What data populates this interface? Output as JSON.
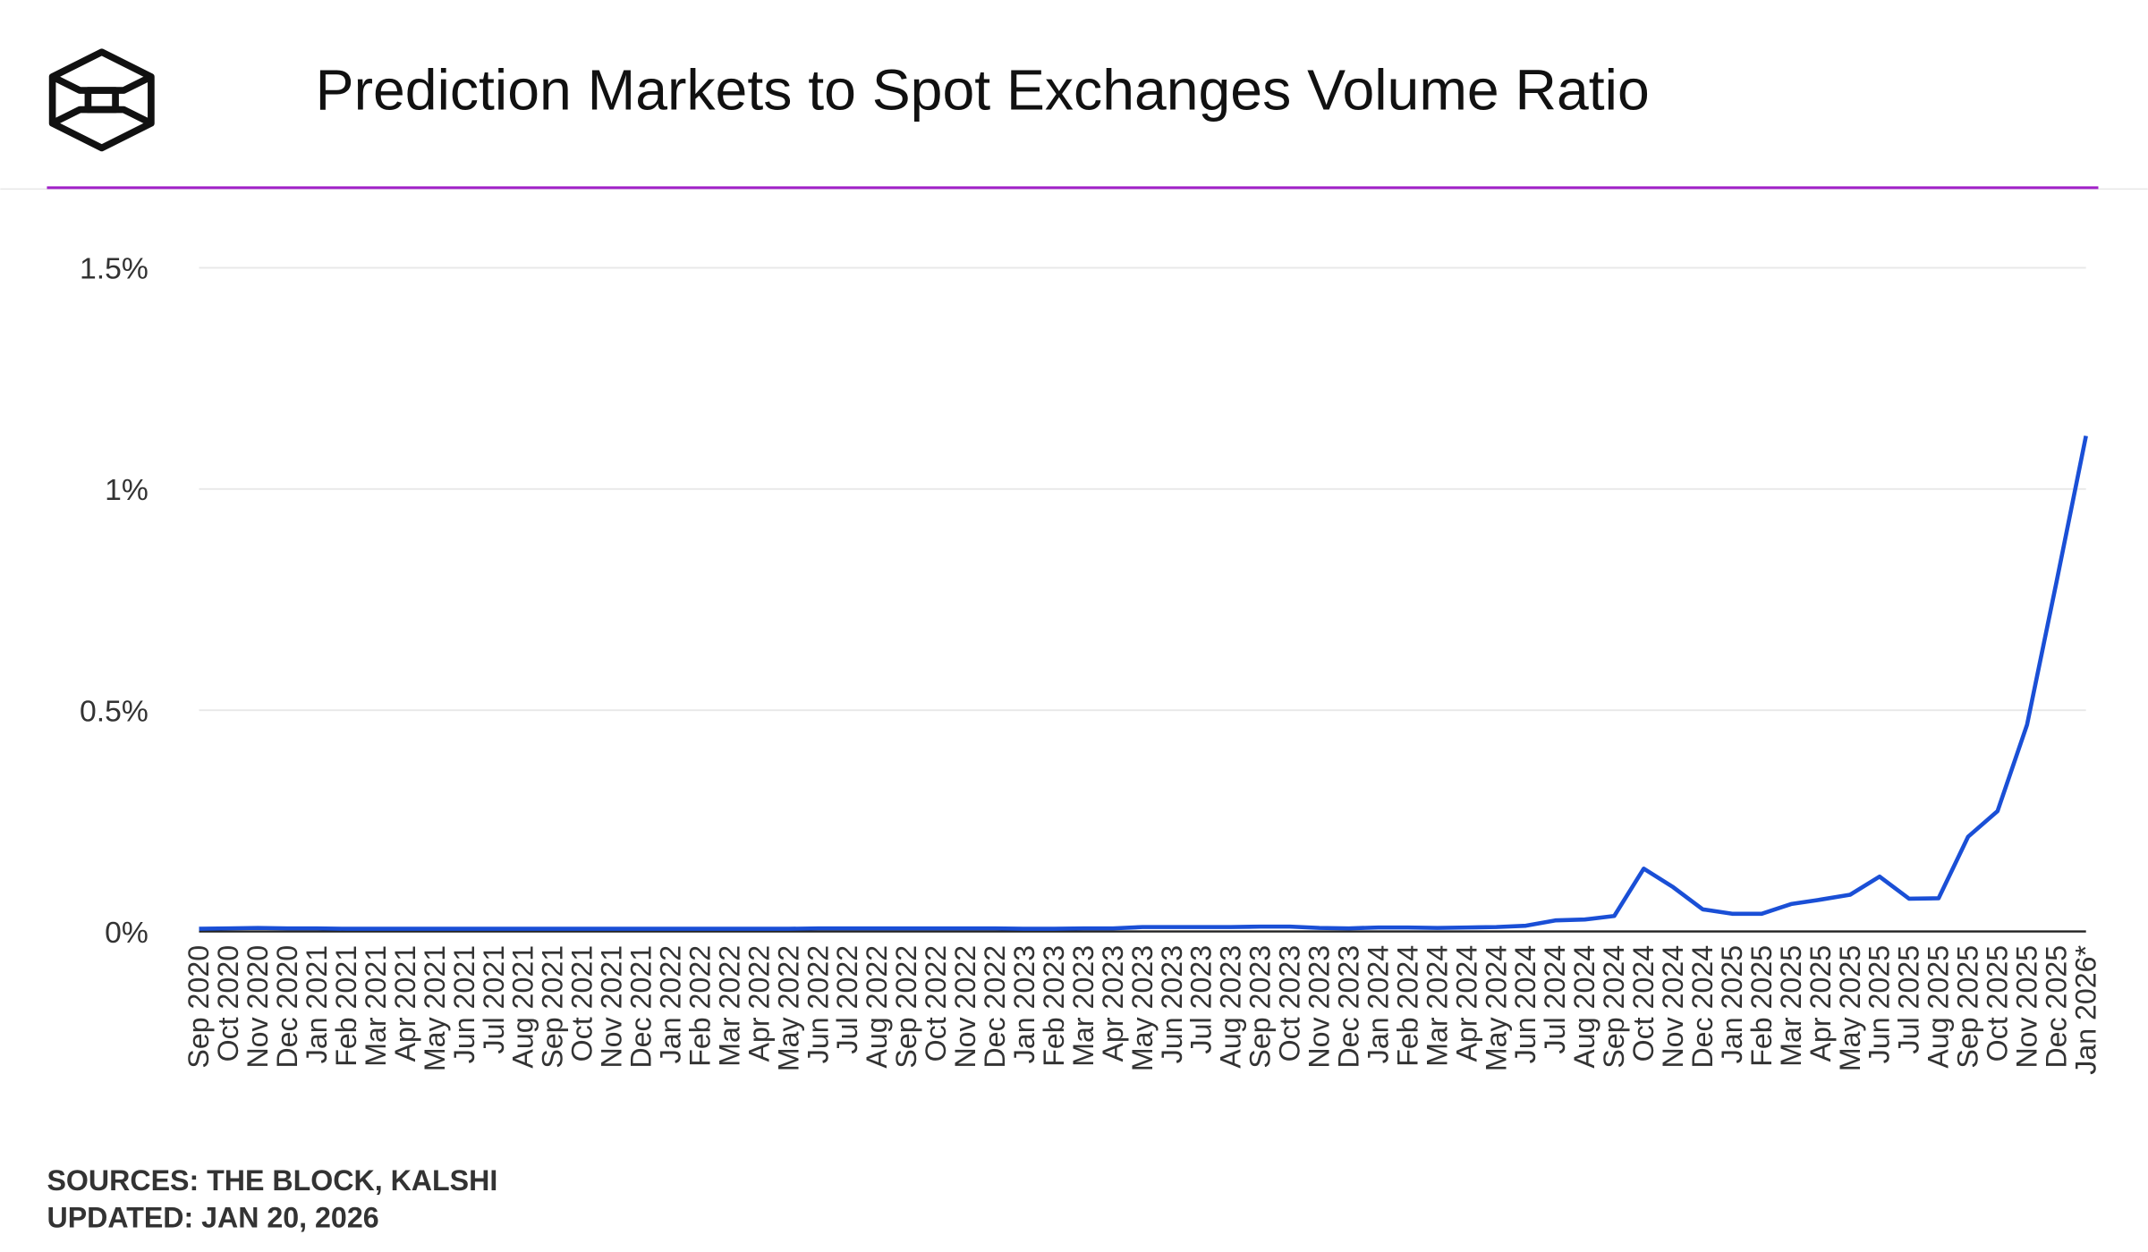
{
  "chart_data": {
    "type": "line",
    "title": "Prediction Markets to Spot Exchanges Volume Ratio",
    "sources": "SOURCES: THE BLOCK, KALSHI",
    "updated": "UPDATED: JAN 20, 2026",
    "categories": [
      "Sep 2020",
      "Oct 2020",
      "Nov 2020",
      "Dec 2020",
      "Jan 2021",
      "Feb 2021",
      "Mar 2021",
      "Apr 2021",
      "May 2021",
      "Jun 2021",
      "Jul 2021",
      "Aug 2021",
      "Sep 2021",
      "Oct 2021",
      "Nov 2021",
      "Dec 2021",
      "Jan 2022",
      "Feb 2022",
      "Mar 2022",
      "Apr 2022",
      "May 2022",
      "Jun 2022",
      "Jul 2022",
      "Aug 2022",
      "Sep 2022",
      "Oct 2022",
      "Nov 2022",
      "Dec 2022",
      "Jan 2023",
      "Feb 2023",
      "Mar 2023",
      "Apr 2023",
      "May 2023",
      "Jun 2023",
      "Jul 2023",
      "Aug 2023",
      "Sep 2023",
      "Oct 2023",
      "Nov 2023",
      "Dec 2023",
      "Jan 2024",
      "Feb 2024",
      "Mar 2024",
      "Apr 2024",
      "May 2024",
      "Jun 2024",
      "Jul 2024",
      "Aug 2024",
      "Sep 2024",
      "Oct 2024",
      "Nov 2024",
      "Dec 2024",
      "Jan 2025",
      "Feb 2025",
      "Mar 2025",
      "Apr 2025",
      "May 2025",
      "Jun 2025",
      "Jul 2025",
      "Aug 2025",
      "Sep 2025",
      "Oct 2025",
      "Nov 2025",
      "Dec 2025",
      "Jan 2026*"
    ],
    "series": [
      {
        "name": "Ratio",
        "color": "#1a4fd6",
        "values": [
          0.006,
          0.007,
          0.008,
          0.007,
          0.007,
          0.006,
          0.006,
          0.006,
          0.006,
          0.006,
          0.006,
          0.006,
          0.006,
          0.006,
          0.006,
          0.006,
          0.006,
          0.006,
          0.006,
          0.006,
          0.006,
          0.007,
          0.007,
          0.007,
          0.007,
          0.007,
          0.007,
          0.007,
          0.006,
          0.006,
          0.007,
          0.007,
          0.01,
          0.01,
          0.01,
          0.01,
          0.011,
          0.011,
          0.008,
          0.007,
          0.009,
          0.009,
          0.008,
          0.009,
          0.01,
          0.013,
          0.025,
          0.027,
          0.035,
          0.142,
          0.1,
          0.05,
          0.04,
          0.04,
          0.062,
          0.072,
          0.083,
          0.124,
          0.074,
          0.075,
          0.214,
          0.272,
          0.467,
          0.79,
          1.12
        ]
      }
    ],
    "ylim": [
      0,
      1.6
    ],
    "yticks": [
      {
        "value": 0,
        "label": "0%"
      },
      {
        "value": 0.5,
        "label": "0.5%"
      },
      {
        "value": 1,
        "label": "1%"
      },
      {
        "value": 1.5,
        "label": "1.5%"
      }
    ],
    "grid": true
  }
}
